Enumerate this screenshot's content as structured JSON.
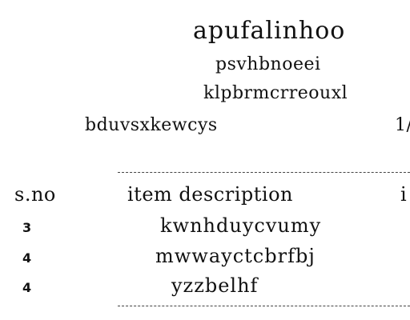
{
  "header": {
    "title": "apufalinhoo",
    "subtitle1": "psvhbnoeei",
    "subtitle2": "klpbrmcrreouxl",
    "left_code": "bduvsxkewcys",
    "right_code": "1/"
  },
  "table": {
    "separator": "----------------------------------------------------------------",
    "columns": [
      "s.no",
      "item description",
      "i"
    ],
    "rows": [
      {
        "qty": "3",
        "description": "kwnhduycvumy"
      },
      {
        "qty": "4",
        "description": "mwwayctcbrfbj"
      },
      {
        "qty": "4",
        "description": "yzzbelhf"
      }
    ]
  }
}
